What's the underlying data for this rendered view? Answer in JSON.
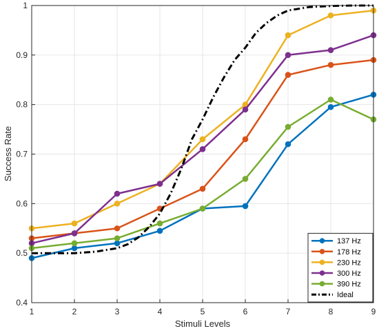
{
  "chart_data": {
    "type": "line",
    "xlabel": "Stimuli Levels",
    "ylabel": "Success Rate",
    "x": [
      1,
      2,
      3,
      4,
      5,
      6,
      7,
      8,
      9
    ],
    "xlim": [
      1,
      9
    ],
    "ylim": [
      0.4,
      1.0
    ],
    "xticks": [
      "1",
      "2",
      "3",
      "4",
      "5",
      "6",
      "7",
      "8",
      "9"
    ],
    "yticks": [
      "0.4",
      "0.5",
      "0.6",
      "0.7",
      "0.8",
      "0.9",
      "1"
    ],
    "grid": true,
    "legend_position": "bottom-right",
    "series": [
      {
        "name": "137 Hz",
        "color": "#0072BD",
        "style": "solid",
        "marker": "circle",
        "values": [
          0.49,
          0.51,
          0.52,
          0.545,
          0.59,
          0.595,
          0.72,
          0.795,
          0.82
        ]
      },
      {
        "name": "178 Hz",
        "color": "#D95319",
        "style": "solid",
        "marker": "circle",
        "values": [
          0.53,
          0.54,
          0.55,
          0.59,
          0.63,
          0.73,
          0.86,
          0.88,
          0.89
        ]
      },
      {
        "name": "230 Hz",
        "color": "#EDB120",
        "style": "solid",
        "marker": "circle",
        "values": [
          0.55,
          0.56,
          0.6,
          0.64,
          0.73,
          0.8,
          0.94,
          0.98,
          0.99
        ]
      },
      {
        "name": "300 Hz",
        "color": "#7E2F8E",
        "style": "solid",
        "marker": "circle",
        "values": [
          0.52,
          0.54,
          0.62,
          0.64,
          0.71,
          0.79,
          0.9,
          0.91,
          0.94
        ]
      },
      {
        "name": "390 Hz",
        "color": "#77AC30",
        "style": "solid",
        "marker": "circle",
        "values": [
          0.51,
          0.52,
          0.53,
          0.56,
          0.59,
          0.65,
          0.755,
          0.81,
          0.77
        ]
      },
      {
        "name": "Ideal",
        "color": "#000000",
        "style": "dashdot",
        "marker": "none",
        "x": [
          1,
          1.5,
          2,
          2.5,
          3,
          3.25,
          3.5,
          3.75,
          4,
          4.25,
          4.5,
          4.75,
          5,
          5.25,
          5.5,
          5.75,
          6,
          6.25,
          6.5,
          6.75,
          7,
          7.5,
          8,
          8.5,
          9
        ],
        "values": [
          0.5,
          0.5,
          0.5,
          0.503,
          0.51,
          0.518,
          0.532,
          0.553,
          0.58,
          0.62,
          0.67,
          0.73,
          0.77,
          0.815,
          0.855,
          0.89,
          0.915,
          0.945,
          0.965,
          0.98,
          0.99,
          0.997,
          0.999,
          1.0,
          1.0
        ]
      }
    ]
  }
}
